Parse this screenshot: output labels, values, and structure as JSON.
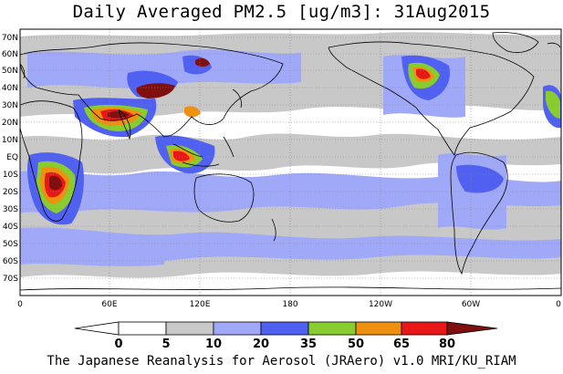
{
  "title": "Daily Averaged PM2.5 [ug/m3]: 31Aug2015",
  "credit": "The Japanese Reanalysis for Aerosol (JRAero) v1.0 MRI/KU_RIAM",
  "lat_labels": [
    "70N",
    "60N",
    "50N",
    "40N",
    "30N",
    "20N",
    "10N",
    "EQ",
    "10S",
    "20S",
    "30S",
    "40S",
    "50S",
    "60S",
    "70S"
  ],
  "lon_labels": [
    "0",
    "60E",
    "120E",
    "180",
    "120W",
    "60W",
    "0"
  ],
  "colorbar": {
    "tick_labels": [
      "0",
      "5",
      "10",
      "20",
      "35",
      "50",
      "65",
      "80"
    ],
    "colors": [
      "#ffffff",
      "#c8c8c8",
      "#a0a8f8",
      "#5060f0",
      "#88cc30",
      "#f09010",
      "#e81818",
      "#801010"
    ]
  }
}
